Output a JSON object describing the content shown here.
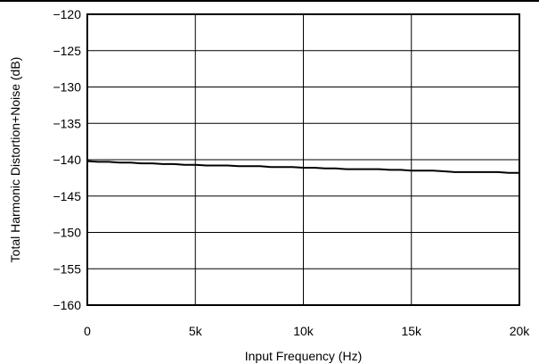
{
  "chart_data": {
    "type": "line",
    "title": "",
    "xlabel": "Input Frequency (Hz)",
    "ylabel": "Total Harmonic Distortion+Noise (dB)",
    "xlim": [
      0,
      20000
    ],
    "ylim": [
      -160,
      -120
    ],
    "x_ticks": [
      {
        "value": 0,
        "label": "0"
      },
      {
        "value": 5000,
        "label": "5k"
      },
      {
        "value": 10000,
        "label": "10k"
      },
      {
        "value": 15000,
        "label": "15k"
      },
      {
        "value": 20000,
        "label": "20k"
      }
    ],
    "y_ticks": [
      {
        "value": -120,
        "label": "−120"
      },
      {
        "value": -125,
        "label": "−125"
      },
      {
        "value": -130,
        "label": "−130"
      },
      {
        "value": -135,
        "label": "−135"
      },
      {
        "value": -140,
        "label": "−140"
      },
      {
        "value": -145,
        "label": "−145"
      },
      {
        "value": -150,
        "label": "−150"
      },
      {
        "value": -155,
        "label": "−155"
      },
      {
        "value": -160,
        "label": "−160"
      }
    ],
    "grid": true,
    "series": [
      {
        "color": "#000000",
        "x": [
          20,
          500,
          1000,
          1500,
          2000,
          2500,
          3000,
          3500,
          4000,
          4500,
          5000,
          5500,
          6000,
          6500,
          7000,
          7500,
          8000,
          8500,
          9000,
          9500,
          10000,
          10500,
          11000,
          11500,
          12000,
          12500,
          13000,
          13500,
          14000,
          14500,
          15000,
          15500,
          16000,
          16500,
          17000,
          17500,
          18000,
          18500,
          19000,
          19500,
          20000
        ],
        "y": [
          -140.2,
          -140.3,
          -140.3,
          -140.4,
          -140.4,
          -140.5,
          -140.5,
          -140.6,
          -140.6,
          -140.7,
          -140.7,
          -140.8,
          -140.8,
          -140.8,
          -140.9,
          -140.9,
          -140.9,
          -141.0,
          -141.0,
          -141.0,
          -141.1,
          -141.1,
          -141.2,
          -141.2,
          -141.3,
          -141.3,
          -141.3,
          -141.3,
          -141.4,
          -141.4,
          -141.5,
          -141.5,
          -141.5,
          -141.6,
          -141.7,
          -141.7,
          -141.7,
          -141.7,
          -141.7,
          -141.8,
          -141.8
        ]
      }
    ]
  }
}
